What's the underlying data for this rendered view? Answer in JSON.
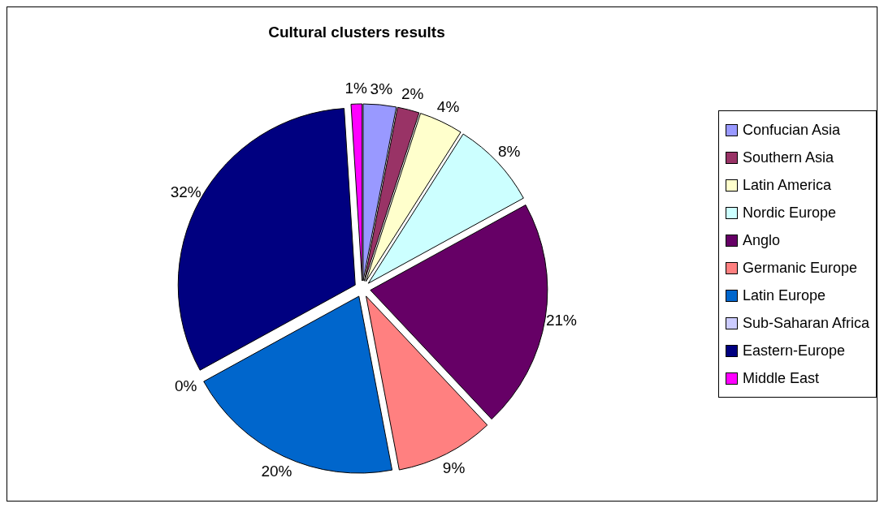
{
  "chart_data": {
    "type": "pie",
    "title": "Cultural clusters results",
    "categories": [
      "Confucian Asia",
      "Southern Asia",
      "Latin America",
      "Nordic Europe",
      "Anglo",
      "Germanic Europe",
      "Latin Europe",
      "Sub-Saharan Africa",
      "Eastern-Europe",
      "Middle East"
    ],
    "values": [
      3,
      2,
      4,
      8,
      21,
      9,
      20,
      0,
      32,
      1
    ],
    "value_labels": [
      "3%",
      "2%",
      "4%",
      "8%",
      "21%",
      "9%",
      "20%",
      "0%",
      "32%",
      "1%"
    ],
    "colors": [
      "#9999ff",
      "#993366",
      "#ffffcc",
      "#ccffff",
      "#660066",
      "#ff8080",
      "#0066cc",
      "#ccccff",
      "#000080",
      "#ff00ff"
    ],
    "legend": "right"
  }
}
